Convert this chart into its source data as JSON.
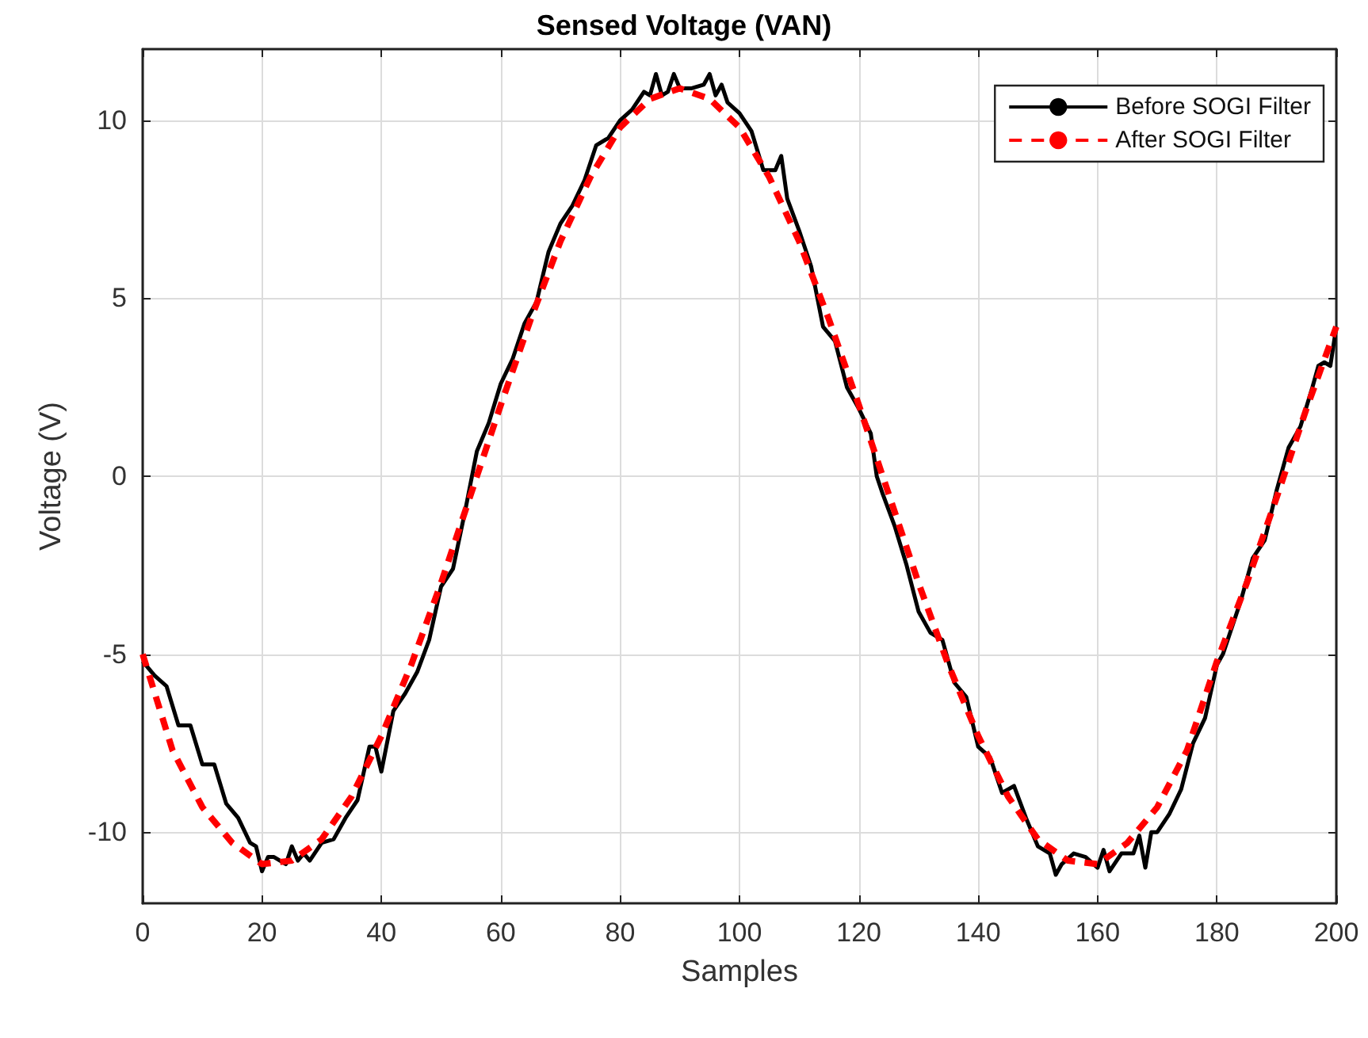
{
  "chart_data": {
    "type": "line",
    "title": "Sensed Voltage (VAN)",
    "xlabel": "Samples",
    "ylabel": "Voltage (V)",
    "xlim": [
      0,
      200
    ],
    "xticks": [
      0,
      20,
      40,
      60,
      80,
      100,
      120,
      140,
      160,
      180,
      200
    ],
    "ylim": [
      -12,
      12
    ],
    "yticks": [
      -10,
      -5,
      0,
      5,
      10
    ],
    "grid": true,
    "legend": "top right",
    "marker": "none",
    "series": [
      {
        "name": "Before SOGI Filter",
        "color": "#000000",
        "line_style": "solid",
        "x": [
          0,
          2,
          4,
          6,
          8,
          10,
          12,
          14,
          16,
          18,
          19,
          20,
          21,
          22,
          24,
          25,
          26,
          27,
          28,
          30,
          32,
          34,
          36,
          38,
          39,
          40,
          42,
          44,
          46,
          48,
          50,
          52,
          54,
          56,
          58,
          60,
          62,
          64,
          66,
          68,
          70,
          72,
          74,
          76,
          78,
          80,
          82,
          84,
          85,
          86,
          87,
          88,
          89,
          90,
          92,
          94,
          95,
          96,
          97,
          98,
          100,
          102,
          104,
          106,
          107,
          108,
          110,
          112,
          114,
          116,
          118,
          120,
          122,
          123,
          124,
          126,
          128,
          130,
          132,
          134,
          136,
          138,
          140,
          142,
          144,
          146,
          148,
          150,
          152,
          153,
          154,
          156,
          158,
          160,
          161,
          162,
          164,
          166,
          167,
          168,
          169,
          170,
          172,
          174,
          176,
          178,
          180,
          181,
          182,
          184,
          186,
          188,
          190,
          192,
          194,
          196,
          197,
          198,
          199,
          200
        ],
        "values": [
          -5.2,
          -5.6,
          -5.9,
          -7.0,
          -7.0,
          -8.1,
          -8.1,
          -9.2,
          -9.6,
          -10.3,
          -10.4,
          -11.1,
          -10.7,
          -10.7,
          -10.9,
          -10.4,
          -10.8,
          -10.6,
          -10.8,
          -10.3,
          -10.2,
          -9.6,
          -9.1,
          -7.6,
          -7.6,
          -8.3,
          -6.6,
          -6.1,
          -5.5,
          -4.6,
          -3.1,
          -2.6,
          -1.0,
          0.7,
          1.5,
          2.6,
          3.3,
          4.3,
          4.9,
          6.3,
          7.1,
          7.6,
          8.3,
          9.3,
          9.5,
          10.0,
          10.3,
          10.8,
          10.7,
          11.3,
          10.7,
          10.8,
          11.3,
          10.9,
          10.9,
          11.0,
          11.3,
          10.7,
          11.0,
          10.5,
          10.2,
          9.7,
          8.6,
          8.6,
          9.0,
          7.8,
          6.9,
          5.9,
          4.2,
          3.8,
          2.5,
          1.9,
          1.2,
          0.0,
          -0.5,
          -1.4,
          -2.5,
          -3.8,
          -4.4,
          -4.6,
          -5.8,
          -6.2,
          -7.6,
          -7.9,
          -8.9,
          -8.7,
          -9.6,
          -10.4,
          -10.6,
          -11.2,
          -10.9,
          -10.6,
          -10.7,
          -11.0,
          -10.5,
          -11.1,
          -10.6,
          -10.6,
          -10.1,
          -11.0,
          -10.0,
          -10.0,
          -9.5,
          -8.8,
          -7.5,
          -6.8,
          -5.3,
          -5.0,
          -4.5,
          -3.5,
          -2.3,
          -1.8,
          -0.4,
          0.8,
          1.4,
          2.5,
          3.1,
          3.2,
          3.1,
          4.2
        ]
      },
      {
        "name": "After SOGI Filter",
        "color": "#ff0000",
        "line_style": "dashed",
        "x": [
          0,
          5,
          10,
          15,
          20,
          25,
          30,
          35,
          40,
          45,
          50,
          55,
          60,
          65,
          70,
          75,
          80,
          85,
          90,
          95,
          100,
          105,
          110,
          115,
          120,
          125,
          130,
          135,
          140,
          145,
          150,
          155,
          160,
          165,
          170,
          175,
          180,
          185,
          190,
          195,
          200
        ],
        "values": [
          -5.0,
          -7.7,
          -9.3,
          -10.3,
          -10.9,
          -10.8,
          -10.2,
          -9.0,
          -7.3,
          -5.3,
          -3.0,
          -0.5,
          2.0,
          4.4,
          6.6,
          8.4,
          9.8,
          10.6,
          10.9,
          10.6,
          9.8,
          8.4,
          6.6,
          4.4,
          2.0,
          -0.5,
          -3.0,
          -5.3,
          -7.3,
          -9.0,
          -10.2,
          -10.8,
          -10.9,
          -10.3,
          -9.3,
          -7.7,
          -5.2,
          -3.0,
          -0.6,
          1.9,
          4.2
        ]
      }
    ]
  }
}
